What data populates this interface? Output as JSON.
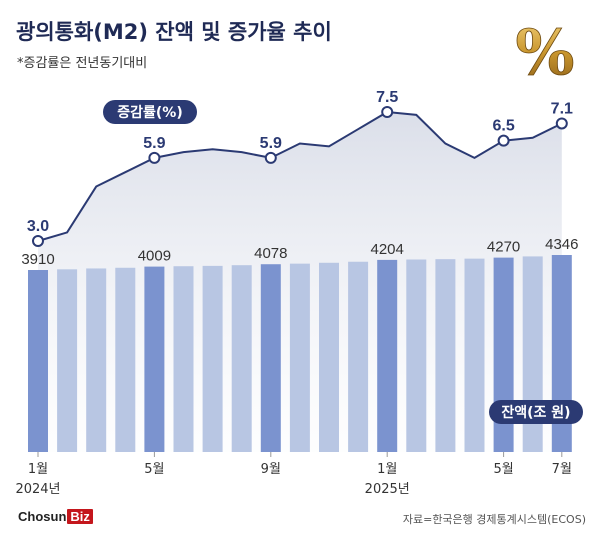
{
  "header": {
    "title": "광의통화(M2) 잔액 및 증가율 추이",
    "subtitle": "*증감률은 전년동기대비",
    "percent_symbol": "%"
  },
  "footer": {
    "logo_main": "Chosun",
    "logo_biz": "Biz",
    "source": "자료=한국은행 경제통계시스템(ECOS)"
  },
  "colors": {
    "line": "#2b3a73",
    "bar_light": "#b8c6e3",
    "bar_dark": "#7b93cf",
    "area_top": "#d9dde8",
    "badge": "#2b3a73",
    "gold": "#b8862b"
  },
  "chart_data": {
    "type": "bar+line",
    "periods": [
      "2024-01",
      "2024-02",
      "2024-03",
      "2024-04",
      "2024-05",
      "2024-06",
      "2024-07",
      "2024-08",
      "2024-09",
      "2024-10",
      "2024-11",
      "2024-12",
      "2025-01",
      "2025-02",
      "2025-03",
      "2025-04",
      "2025-05",
      "2025-06",
      "2025-07"
    ],
    "x_tick_labels": [
      "1월",
      "",
      "",
      "",
      "5월",
      "",
      "",
      "",
      "9월",
      "",
      "",
      "",
      "1월",
      "",
      "",
      "",
      "5월",
      "",
      "7월"
    ],
    "year_labels": [
      {
        "index": 0,
        "label": "2024년"
      },
      {
        "index": 12,
        "label": "2025년"
      }
    ],
    "balance_series": {
      "name": "잔액(조 원)",
      "values": [
        3910,
        3930,
        3955,
        3975,
        4009,
        4020,
        4030,
        4050,
        4078,
        4095,
        4120,
        4150,
        4204,
        4215,
        4225,
        4240,
        4270,
        4305,
        4346
      ],
      "labeled_indices": [
        0,
        4,
        8,
        12,
        16,
        18
      ],
      "highlight_indices": [
        0,
        4,
        8,
        12,
        16,
        18
      ],
      "baseline": 0
    },
    "growth_series": {
      "name": "증감률(%)",
      "values": [
        3.0,
        3.3,
        4.9,
        5.4,
        5.9,
        6.1,
        6.2,
        6.1,
        5.9,
        6.4,
        6.3,
        6.9,
        7.5,
        7.4,
        6.4,
        5.9,
        6.5,
        6.6,
        7.1
      ],
      "labeled_indices": [
        0,
        4,
        8,
        12,
        16,
        18
      ],
      "y_range": [
        3.0,
        7.5
      ]
    }
  }
}
